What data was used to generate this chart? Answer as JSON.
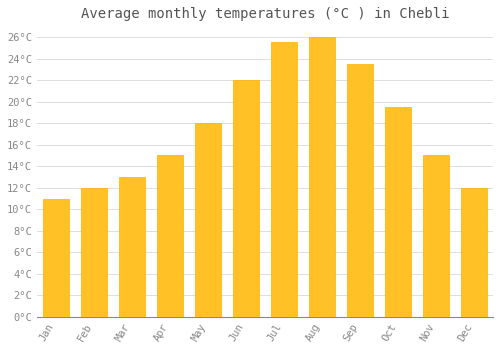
{
  "title": "Average monthly temperatures (°C ) in Chebli",
  "months": [
    "Jan",
    "Feb",
    "Mar",
    "Apr",
    "May",
    "Jun",
    "Jul",
    "Aug",
    "Sep",
    "Oct",
    "Nov",
    "Dec"
  ],
  "values": [
    11,
    12,
    13,
    15,
    18,
    22,
    25.5,
    26,
    23.5,
    19.5,
    15,
    12
  ],
  "bar_color": "#FFC125",
  "bar_edge_color": "#FFB000",
  "background_color": "#FFFFFF",
  "grid_color": "#DDDDDD",
  "ylim": [
    0,
    27
  ],
  "yticks": [
    0,
    2,
    4,
    6,
    8,
    10,
    12,
    14,
    16,
    18,
    20,
    22,
    24,
    26
  ],
  "title_fontsize": 10,
  "tick_fontsize": 7.5,
  "tick_font_color": "#888888",
  "title_color": "#555555"
}
